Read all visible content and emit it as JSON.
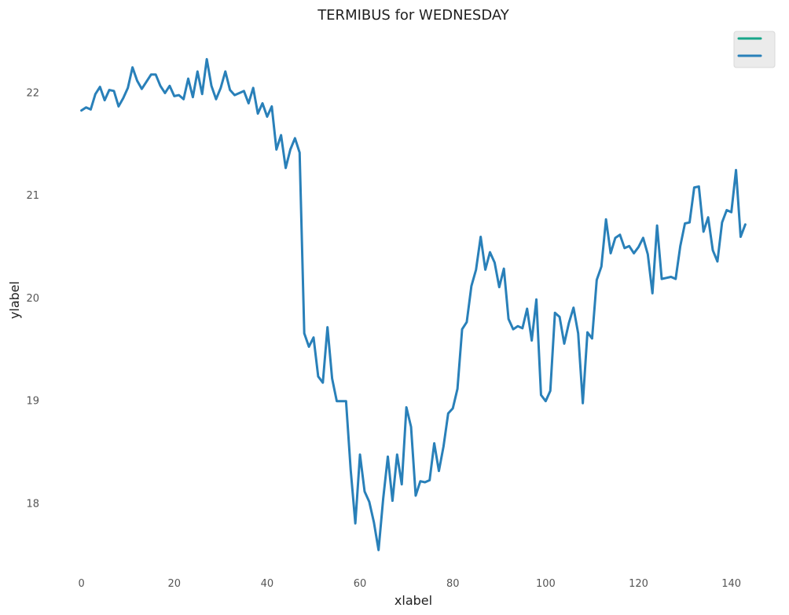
{
  "chart_data": {
    "type": "line",
    "title": "TERMIBUS for WEDNESDAY",
    "xlabel": "xlabel",
    "ylabel": "ylabel",
    "xlim": [
      -4,
      147
    ],
    "ylim": [
      17.3,
      22.6
    ],
    "x_ticks": [
      0,
      20,
      40,
      60,
      80,
      100,
      120,
      140
    ],
    "x_tick_labels": [
      "0",
      "20",
      "40",
      "60",
      "80",
      "100",
      "120",
      "140"
    ],
    "y_ticks": [
      18,
      19,
      20,
      21,
      22
    ],
    "y_tick_labels": [
      "18",
      "19",
      "20",
      "21",
      "22"
    ],
    "grid": false,
    "legend_position": "top-right",
    "series": [
      {
        "name": "",
        "color": "#17a589",
        "x": [],
        "values": []
      },
      {
        "name": "",
        "color": "#2980b9",
        "x": [
          0,
          1,
          2,
          3,
          4,
          5,
          6,
          7,
          8,
          9,
          10,
          11,
          12,
          13,
          14,
          15,
          16,
          17,
          18,
          19,
          20,
          21,
          22,
          23,
          24,
          25,
          26,
          27,
          28,
          29,
          30,
          31,
          32,
          33,
          34,
          35,
          36,
          37,
          38,
          39,
          40,
          41,
          42,
          43,
          44,
          45,
          46,
          47,
          48,
          49,
          50,
          51,
          52,
          53,
          54,
          55,
          56,
          57,
          58,
          59,
          60,
          61,
          62,
          63,
          64,
          65,
          66,
          67,
          68,
          69,
          70,
          71,
          72,
          73,
          74,
          75,
          76,
          77,
          78,
          79,
          80,
          81,
          82,
          83,
          84,
          85,
          86,
          87,
          88,
          89,
          90,
          91,
          92,
          93,
          94,
          95,
          96,
          97,
          98,
          99,
          100,
          101,
          102,
          103,
          104,
          105,
          106,
          107,
          108,
          109,
          110,
          111,
          112,
          113,
          114,
          115,
          116,
          117,
          118,
          119,
          120,
          121,
          122,
          123,
          124,
          125,
          126,
          127,
          128,
          129,
          130,
          131,
          132,
          133,
          134,
          135,
          136,
          137,
          138,
          139,
          140,
          141,
          142,
          143
        ],
        "values": [
          21.83,
          21.86,
          21.84,
          21.99,
          22.06,
          21.93,
          22.03,
          22.02,
          21.87,
          21.95,
          22.05,
          22.25,
          22.12,
          22.04,
          22.11,
          22.18,
          22.18,
          22.07,
          22.0,
          22.07,
          21.97,
          21.98,
          21.94,
          22.14,
          21.96,
          22.21,
          21.99,
          22.33,
          22.07,
          21.94,
          22.05,
          22.21,
          22.03,
          21.98,
          22.0,
          22.02,
          21.9,
          22.05,
          21.8,
          21.9,
          21.77,
          21.87,
          21.45,
          21.59,
          21.27,
          21.45,
          21.56,
          21.42,
          19.66,
          19.53,
          19.62,
          19.24,
          19.18,
          19.72,
          19.22,
          19.0,
          19.0,
          19.0,
          18.33,
          17.81,
          18.48,
          18.12,
          18.02,
          17.82,
          17.55,
          18.05,
          18.46,
          18.03,
          18.48,
          18.19,
          18.94,
          18.75,
          18.08,
          18.22,
          18.21,
          18.23,
          18.59,
          18.32,
          18.56,
          18.88,
          18.93,
          19.12,
          19.7,
          19.77,
          20.12,
          20.28,
          20.6,
          20.28,
          20.45,
          20.35,
          20.11,
          20.29,
          19.8,
          19.7,
          19.73,
          19.71,
          19.9,
          19.59,
          19.99,
          19.06,
          19.0,
          19.1,
          19.86,
          19.82,
          19.56,
          19.76,
          19.91,
          19.66,
          18.98,
          19.67,
          19.61,
          20.18,
          20.31,
          20.77,
          20.44,
          20.59,
          20.62,
          20.49,
          20.51,
          20.44,
          20.5,
          20.59,
          20.43,
          20.05,
          20.71,
          20.19,
          20.2,
          20.21,
          20.19,
          20.51,
          20.73,
          20.74,
          21.08,
          21.09,
          20.65,
          20.79,
          20.47,
          20.36,
          20.74,
          20.86,
          20.84,
          21.25,
          20.6,
          20.72
        ]
      }
    ]
  }
}
